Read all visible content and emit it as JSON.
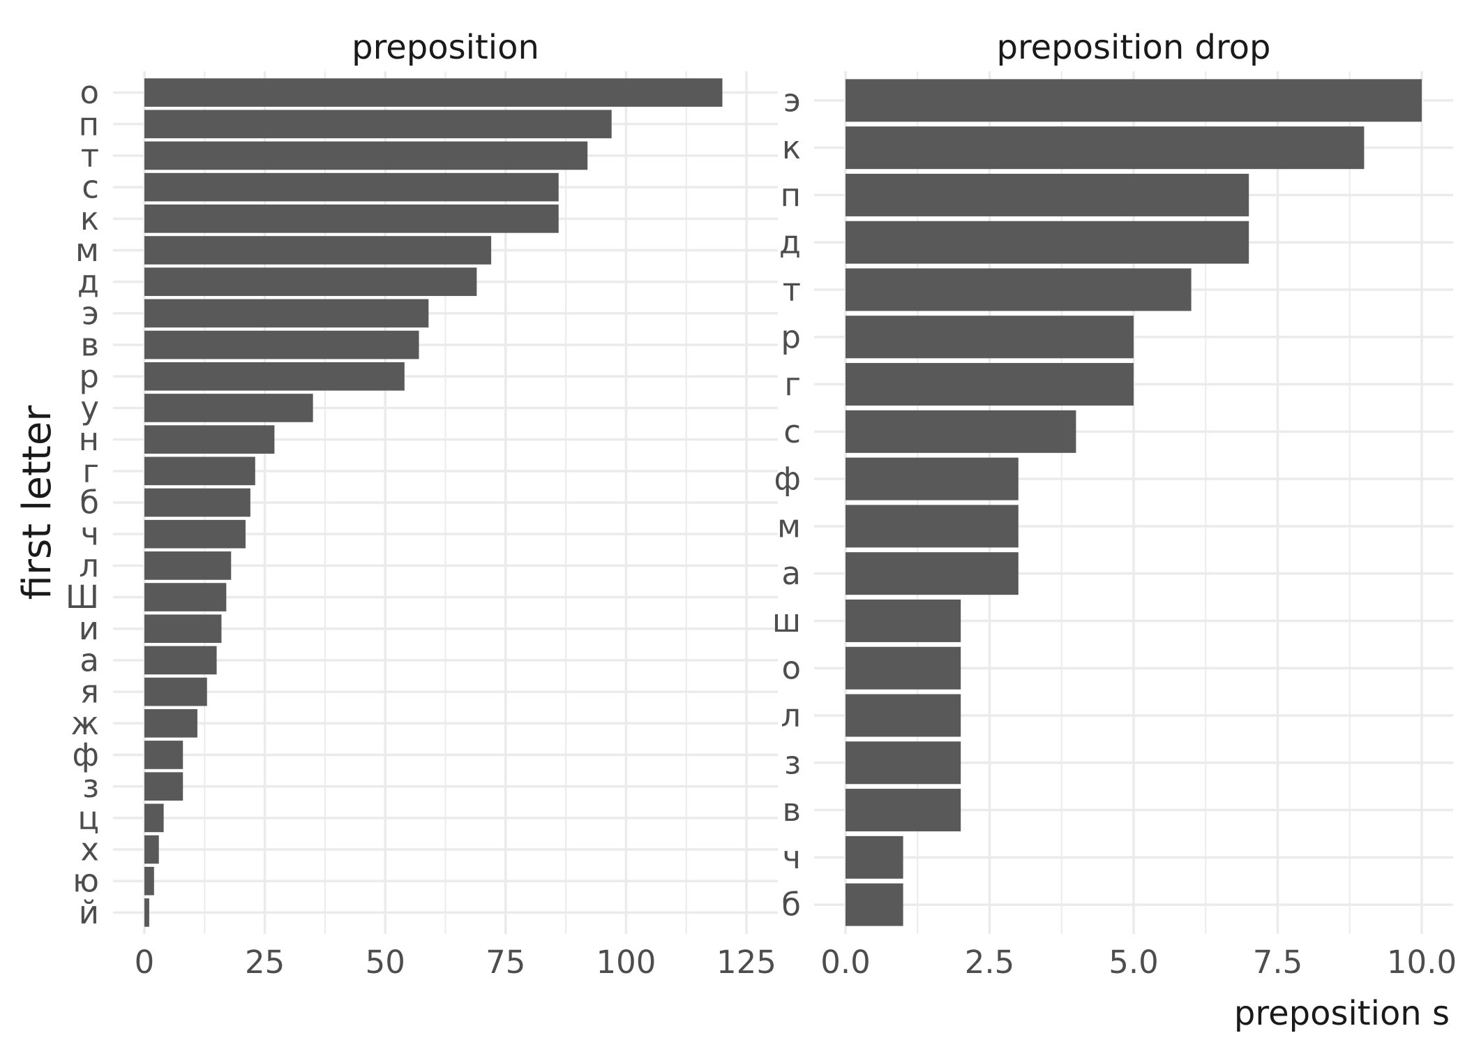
{
  "chart_data": {
    "type": "bar",
    "orientation": "horizontal",
    "ylabel": "first letter",
    "xlabel": "preposition s",
    "grid": true,
    "bar_color": "#595959",
    "grid_color": "#ebebeb",
    "panels": [
      {
        "title": "preposition",
        "xlim": [
          0,
          125
        ],
        "xticks": [
          "0",
          "25",
          "50",
          "75",
          "100",
          "125"
        ],
        "categories": [
          "о",
          "п",
          "т",
          "с",
          "к",
          "м",
          "д",
          "э",
          "в",
          "р",
          "у",
          "н",
          "г",
          "б",
          "ч",
          "л",
          "Ш",
          "и",
          "а",
          "я",
          "ж",
          "ф",
          "з",
          "ц",
          "х",
          "ю",
          "й"
        ],
        "values": [
          120,
          97,
          92,
          86,
          86,
          72,
          69,
          59,
          57,
          54,
          35,
          27,
          23,
          22,
          21,
          18,
          17,
          16,
          15,
          13,
          11,
          8,
          8,
          4,
          3,
          2,
          1
        ]
      },
      {
        "title": "preposition drop",
        "xlim": [
          0,
          10
        ],
        "xticks": [
          "0.0",
          "2.5",
          "5.0",
          "7.5",
          "10.0"
        ],
        "categories": [
          "э",
          "к",
          "п",
          "д",
          "т",
          "р",
          "г",
          "с",
          "ф",
          "м",
          "а",
          "ш",
          "о",
          "л",
          "з",
          "в",
          "ч",
          "б"
        ],
        "values": [
          10,
          9,
          7,
          7,
          6,
          5,
          5,
          4,
          3,
          3,
          3,
          2,
          2,
          2,
          2,
          2,
          1,
          1
        ]
      }
    ]
  }
}
